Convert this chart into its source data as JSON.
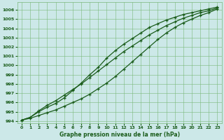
{
  "background_color": "#cce8e8",
  "grid_color": "#7ab87a",
  "line_color": "#1a5c1a",
  "marker_color": "#1a5c1a",
  "title": "Graphe pression niveau de la mer (hPa)",
  "xlim": [
    -0.5,
    23.5
  ],
  "ylim": [
    993.8,
    1006.8
  ],
  "yticks": [
    994,
    995,
    996,
    997,
    998,
    999,
    1000,
    1001,
    1002,
    1003,
    1004,
    1005,
    1006
  ],
  "xticks": [
    0,
    1,
    2,
    3,
    4,
    5,
    6,
    7,
    8,
    9,
    10,
    11,
    12,
    13,
    14,
    15,
    16,
    17,
    18,
    19,
    20,
    21,
    22,
    23
  ],
  "x": [
    0,
    1,
    2,
    3,
    4,
    5,
    6,
    7,
    8,
    9,
    10,
    11,
    12,
    13,
    14,
    15,
    16,
    17,
    18,
    19,
    20,
    21,
    22,
    23
  ],
  "line1": [
    994.1,
    994.4,
    995.0,
    995.5,
    995.9,
    996.5,
    997.3,
    998.1,
    999.0,
    999.8,
    1000.8,
    1001.6,
    1002.3,
    1002.9,
    1003.5,
    1004.1,
    1004.5,
    1004.9,
    1005.2,
    1005.5,
    1005.7,
    1005.9,
    1006.1,
    1006.3
  ],
  "line2": [
    994.1,
    994.3,
    994.6,
    994.9,
    995.2,
    995.6,
    996.0,
    996.4,
    996.9,
    997.5,
    998.1,
    998.8,
    999.6,
    1000.4,
    1001.2,
    1002.0,
    1002.8,
    1003.5,
    1004.1,
    1004.6,
    1005.0,
    1005.4,
    1005.7,
    1006.1
  ],
  "line3": [
    994.1,
    994.4,
    995.1,
    995.7,
    996.2,
    996.8,
    997.4,
    998.0,
    998.7,
    999.4,
    1000.1,
    1000.8,
    1001.5,
    1002.1,
    1002.7,
    1003.3,
    1003.8,
    1004.3,
    1004.7,
    1005.1,
    1005.4,
    1005.7,
    1005.9,
    1006.2
  ]
}
